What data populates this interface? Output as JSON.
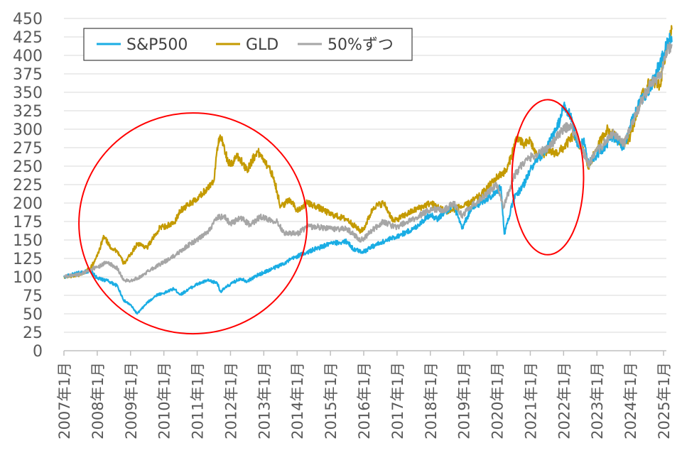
{
  "chart_data": {
    "type": "line",
    "title": "",
    "xlabel": "",
    "ylabel": "",
    "ylim": [
      0,
      450
    ],
    "y_ticks": [
      0,
      25,
      50,
      75,
      100,
      125,
      150,
      175,
      200,
      225,
      250,
      275,
      300,
      325,
      350,
      375,
      400,
      425,
      450
    ],
    "y_tick_labels": [
      "0",
      "25",
      "50",
      "75",
      "100",
      "125",
      "150",
      "175",
      "200",
      "225",
      "250",
      "275",
      "300",
      "325",
      "350",
      "375",
      "400",
      "425",
      "450"
    ],
    "x_ticks": [
      2007,
      2008,
      2009,
      2010,
      2011,
      2012,
      2013,
      2014,
      2015,
      2016,
      2017,
      2018,
      2019,
      2020,
      2021,
      2022,
      2023,
      2024,
      2025
    ],
    "x_tick_labels": [
      "2007年1月",
      "2008年1月",
      "2009年1月",
      "2010年1月",
      "2011年1月",
      "2012年1月",
      "2013年1月",
      "2014年1月",
      "2015年1月",
      "2016年1月",
      "2017年1月",
      "2018年1月",
      "2019年1月",
      "2020年1月",
      "2021年1月",
      "2022年1月",
      "2023年1月",
      "2024年1月",
      "2025年1月"
    ],
    "x_unit": "year",
    "grid": "horizontal",
    "legend": {
      "placement": "top-left",
      "entries": [
        "S&P500",
        "GLD",
        "50%ずつ"
      ]
    },
    "series": [
      {
        "name": "S&P500",
        "color": "#1AADE4",
        "points": [
          [
            2007.0,
            100
          ],
          [
            2007.5,
            106
          ],
          [
            2007.8,
            108
          ],
          [
            2008.0,
            98
          ],
          [
            2008.3,
            95
          ],
          [
            2008.6,
            88
          ],
          [
            2008.8,
            68
          ],
          [
            2009.0,
            62
          ],
          [
            2009.2,
            50
          ],
          [
            2009.5,
            65
          ],
          [
            2009.8,
            76
          ],
          [
            2010.0,
            78
          ],
          [
            2010.3,
            84
          ],
          [
            2010.5,
            76
          ],
          [
            2010.8,
            85
          ],
          [
            2011.0,
            90
          ],
          [
            2011.3,
            95
          ],
          [
            2011.6,
            92
          ],
          [
            2011.7,
            80
          ],
          [
            2011.9,
            87
          ],
          [
            2012.0,
            90
          ],
          [
            2012.3,
            98
          ],
          [
            2012.5,
            94
          ],
          [
            2012.8,
            102
          ],
          [
            2013.0,
            106
          ],
          [
            2013.5,
            116
          ],
          [
            2014.0,
            128
          ],
          [
            2014.5,
            137
          ],
          [
            2015.0,
            145
          ],
          [
            2015.5,
            148
          ],
          [
            2015.7,
            137
          ],
          [
            2016.0,
            134
          ],
          [
            2016.2,
            140
          ],
          [
            2016.5,
            146
          ],
          [
            2017.0,
            155
          ],
          [
            2017.5,
            165
          ],
          [
            2018.0,
            185
          ],
          [
            2018.2,
            178
          ],
          [
            2018.7,
            198
          ],
          [
            2018.95,
            165
          ],
          [
            2019.2,
            190
          ],
          [
            2019.5,
            200
          ],
          [
            2020.0,
            215
          ],
          [
            2020.12,
            222
          ],
          [
            2020.22,
            158
          ],
          [
            2020.5,
            205
          ],
          [
            2020.8,
            225
          ],
          [
            2021.0,
            245
          ],
          [
            2021.5,
            275
          ],
          [
            2021.9,
            312
          ],
          [
            2022.0,
            332
          ],
          [
            2022.2,
            318
          ],
          [
            2022.45,
            275
          ],
          [
            2022.6,
            285
          ],
          [
            2022.75,
            255
          ],
          [
            2023.0,
            265
          ],
          [
            2023.5,
            290
          ],
          [
            2023.8,
            275
          ],
          [
            2024.0,
            305
          ],
          [
            2024.3,
            338
          ],
          [
            2024.6,
            355
          ],
          [
            2024.8,
            380
          ],
          [
            2025.0,
            400
          ],
          [
            2025.15,
            422
          ],
          [
            2025.25,
            418
          ]
        ]
      },
      {
        "name": "GLD",
        "color": "#C49A00",
        "points": [
          [
            2007.0,
            100
          ],
          [
            2007.5,
            103
          ],
          [
            2007.8,
            112
          ],
          [
            2008.0,
            128
          ],
          [
            2008.2,
            155
          ],
          [
            2008.4,
            140
          ],
          [
            2008.6,
            135
          ],
          [
            2008.8,
            118
          ],
          [
            2009.0,
            130
          ],
          [
            2009.2,
            145
          ],
          [
            2009.5,
            140
          ],
          [
            2009.9,
            168
          ],
          [
            2010.0,
            168
          ],
          [
            2010.3,
            172
          ],
          [
            2010.5,
            190
          ],
          [
            2010.8,
            200
          ],
          [
            2011.0,
            205
          ],
          [
            2011.3,
            220
          ],
          [
            2011.5,
            230
          ],
          [
            2011.6,
            275
          ],
          [
            2011.7,
            290
          ],
          [
            2011.9,
            260
          ],
          [
            2012.0,
            250
          ],
          [
            2012.2,
            265
          ],
          [
            2012.5,
            245
          ],
          [
            2012.8,
            270
          ],
          [
            2013.0,
            260
          ],
          [
            2013.3,
            235
          ],
          [
            2013.5,
            195
          ],
          [
            2013.8,
            205
          ],
          [
            2014.0,
            190
          ],
          [
            2014.3,
            200
          ],
          [
            2014.6,
            195
          ],
          [
            2015.0,
            185
          ],
          [
            2015.5,
            178
          ],
          [
            2015.9,
            162
          ],
          [
            2016.0,
            165
          ],
          [
            2016.3,
            195
          ],
          [
            2016.6,
            200
          ],
          [
            2016.9,
            175
          ],
          [
            2017.0,
            178
          ],
          [
            2017.5,
            190
          ],
          [
            2018.0,
            200
          ],
          [
            2018.5,
            188
          ],
          [
            2018.9,
            195
          ],
          [
            2019.0,
            195
          ],
          [
            2019.5,
            210
          ],
          [
            2020.0,
            235
          ],
          [
            2020.3,
            245
          ],
          [
            2020.6,
            290
          ],
          [
            2020.8,
            278
          ],
          [
            2021.0,
            285
          ],
          [
            2021.2,
            262
          ],
          [
            2021.5,
            270
          ],
          [
            2021.8,
            268
          ],
          [
            2022.0,
            275
          ],
          [
            2022.3,
            292
          ],
          [
            2022.6,
            270
          ],
          [
            2022.75,
            248
          ],
          [
            2023.0,
            275
          ],
          [
            2023.3,
            300
          ],
          [
            2023.8,
            280
          ],
          [
            2024.0,
            290
          ],
          [
            2024.3,
            340
          ],
          [
            2024.6,
            365
          ],
          [
            2024.9,
            360
          ],
          [
            2025.0,
            390
          ],
          [
            2025.15,
            420
          ],
          [
            2025.25,
            435
          ]
        ]
      },
      {
        "name": "50%ずつ",
        "color": "#A6A6A6",
        "points": [
          [
            2007.0,
            100
          ],
          [
            2007.5,
            104
          ],
          [
            2007.8,
            110
          ],
          [
            2008.0,
            113
          ],
          [
            2008.3,
            120
          ],
          [
            2008.6,
            112
          ],
          [
            2008.8,
            95
          ],
          [
            2009.0,
            95
          ],
          [
            2009.3,
            100
          ],
          [
            2009.6,
            110
          ],
          [
            2010.0,
            120
          ],
          [
            2010.3,
            128
          ],
          [
            2010.5,
            135
          ],
          [
            2010.8,
            145
          ],
          [
            2011.0,
            150
          ],
          [
            2011.3,
            160
          ],
          [
            2011.6,
            180
          ],
          [
            2011.8,
            182
          ],
          [
            2012.0,
            172
          ],
          [
            2012.3,
            180
          ],
          [
            2012.6,
            170
          ],
          [
            2012.9,
            182
          ],
          [
            2013.0,
            180
          ],
          [
            2013.4,
            175
          ],
          [
            2013.6,
            160
          ],
          [
            2014.0,
            158
          ],
          [
            2014.3,
            168
          ],
          [
            2014.6,
            168
          ],
          [
            2015.0,
            165
          ],
          [
            2015.5,
            165
          ],
          [
            2015.9,
            150
          ],
          [
            2016.0,
            152
          ],
          [
            2016.3,
            165
          ],
          [
            2016.6,
            175
          ],
          [
            2016.9,
            168
          ],
          [
            2017.0,
            168
          ],
          [
            2017.5,
            178
          ],
          [
            2018.0,
            192
          ],
          [
            2018.4,
            190
          ],
          [
            2018.7,
            200
          ],
          [
            2018.95,
            183
          ],
          [
            2019.2,
            195
          ],
          [
            2019.5,
            205
          ],
          [
            2020.0,
            225
          ],
          [
            2020.2,
            195
          ],
          [
            2020.5,
            235
          ],
          [
            2020.7,
            250
          ],
          [
            2021.0,
            262
          ],
          [
            2021.3,
            268
          ],
          [
            2021.6,
            278
          ],
          [
            2021.9,
            295
          ],
          [
            2022.0,
            300
          ],
          [
            2022.2,
            305
          ],
          [
            2022.5,
            280
          ],
          [
            2022.75,
            252
          ],
          [
            2023.0,
            270
          ],
          [
            2023.5,
            295
          ],
          [
            2023.8,
            280
          ],
          [
            2024.0,
            300
          ],
          [
            2024.3,
            335
          ],
          [
            2024.6,
            360
          ],
          [
            2024.9,
            372
          ],
          [
            2025.0,
            390
          ],
          [
            2025.15,
            410
          ],
          [
            2025.25,
            415
          ]
        ]
      }
    ],
    "annotations": [
      {
        "type": "ellipse",
        "color": "#FF0000",
        "x_range": [
          2007.45,
          2014.3
        ],
        "y_range": [
          23,
          322
        ]
      },
      {
        "type": "ellipse",
        "color": "#FF0000",
        "x_range": [
          2020.45,
          2022.6
        ],
        "y_range": [
          130,
          340
        ]
      }
    ]
  }
}
